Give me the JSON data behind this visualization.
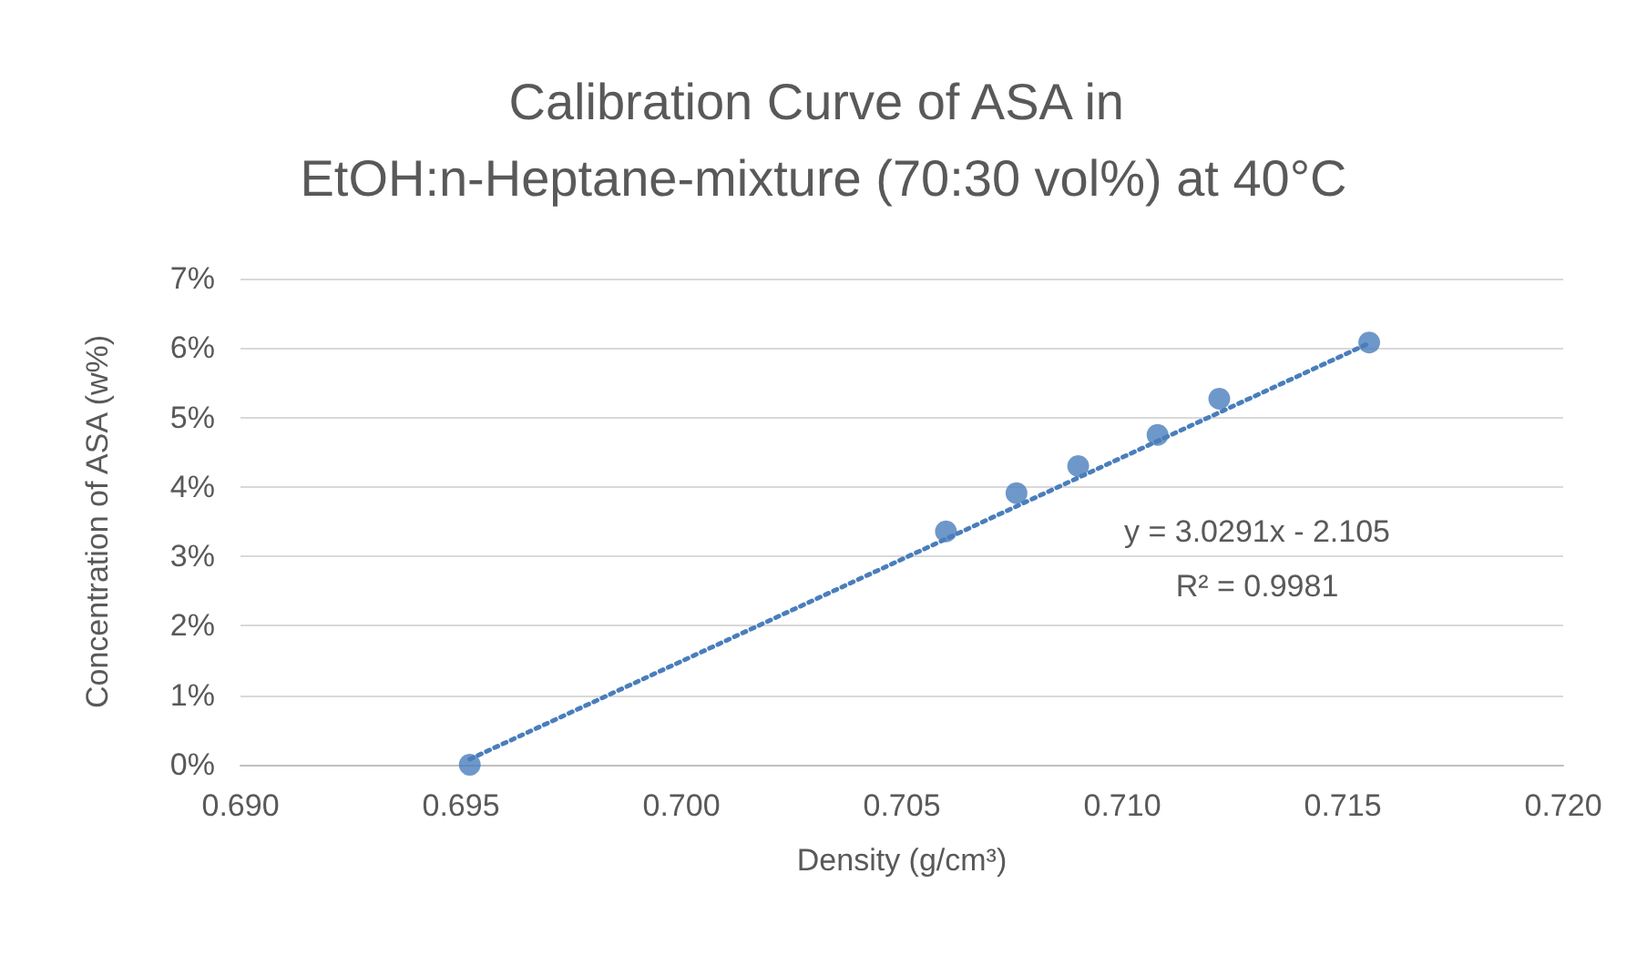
{
  "chart_data": {
    "type": "scatter",
    "title": "Calibration Curve of ASA in EtOH:n-Heptane-mixture (70:30 vol%) at 40°C",
    "xlabel": "Density (g/cm³)",
    "ylabel": "Concentration of ASA (w%)",
    "series": [
      {
        "color": "#4a7ebb",
        "marker": "circle",
        "x": [
          0.6952,
          0.706,
          0.7076,
          0.709,
          0.7108,
          0.7122,
          0.7156
        ],
        "values": [
          0.0,
          3.36,
          3.91,
          4.3,
          4.75,
          5.27,
          6.08
        ]
      },
      {
        "type": "line",
        "color": "#4a7ebb",
        "line_style": "dotted",
        "marker": "none",
        "x": [
          0.6952,
          0.7156
        ],
        "values": [
          0.08,
          6.07
        ]
      }
    ],
    "annotations": [
      "y = 3.0291x - 2.105",
      "R² = 0.9981"
    ],
    "xlim": [
      0.69,
      0.72
    ],
    "xticks": [
      {
        "value": 0.69,
        "label": "0.690"
      },
      {
        "value": 0.695,
        "label": "0.695"
      },
      {
        "value": 0.7,
        "label": "0.700"
      },
      {
        "value": 0.705,
        "label": "0.705"
      },
      {
        "value": 0.71,
        "label": "0.710"
      },
      {
        "value": 0.715,
        "label": "0.715"
      },
      {
        "value": 0.72,
        "label": "0.720"
      }
    ],
    "ylim": [
      0,
      7
    ],
    "yticks": [
      {
        "value": 0,
        "label": "0%"
      },
      {
        "value": 1,
        "label": "1%"
      },
      {
        "value": 2,
        "label": "2%"
      },
      {
        "value": 3,
        "label": "3%"
      },
      {
        "value": 4,
        "label": "4%"
      },
      {
        "value": 5,
        "label": "5%"
      },
      {
        "value": 6,
        "label": "6%"
      },
      {
        "value": 7,
        "label": "7%"
      }
    ],
    "grid": "y"
  }
}
